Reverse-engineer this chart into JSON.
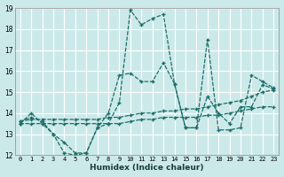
{
  "xlabel": "Humidex (Indice chaleur)",
  "ylabel": "",
  "bg_color": "#cce9e9",
  "grid_color": "#ffffff",
  "line_color": "#1a6e6a",
  "xlim": [
    -0.5,
    23.5
  ],
  "ylim": [
    12,
    19
  ],
  "xticks": [
    0,
    1,
    2,
    3,
    4,
    5,
    6,
    7,
    8,
    9,
    10,
    11,
    12,
    13,
    14,
    15,
    16,
    17,
    18,
    19,
    20,
    21,
    22,
    23
  ],
  "yticks": [
    12,
    13,
    14,
    15,
    16,
    17,
    18,
    19
  ],
  "series": [
    {
      "x": [
        0,
        1,
        2,
        3,
        4,
        5,
        6,
        7,
        8,
        9,
        10,
        11,
        12,
        13,
        14,
        15,
        16,
        17,
        18,
        19,
        20,
        21,
        22,
        23
      ],
      "y": [
        13.5,
        13.5,
        13.5,
        13.5,
        13.5,
        13.5,
        13.5,
        13.5,
        13.5,
        13.5,
        13.6,
        13.7,
        13.7,
        13.8,
        13.8,
        13.8,
        13.8,
        13.9,
        13.9,
        14.0,
        14.1,
        14.2,
        14.3,
        14.3
      ]
    },
    {
      "x": [
        0,
        1,
        2,
        3,
        4,
        5,
        6,
        7,
        8,
        9,
        10,
        11,
        12,
        13,
        14,
        15,
        16,
        17,
        18,
        19,
        20,
        21,
        22,
        23
      ],
      "y": [
        13.6,
        13.7,
        13.7,
        13.7,
        13.7,
        13.7,
        13.7,
        13.7,
        13.8,
        13.8,
        13.9,
        14.0,
        14.0,
        14.1,
        14.1,
        14.2,
        14.2,
        14.3,
        14.4,
        14.5,
        14.6,
        14.8,
        15.0,
        15.1
      ]
    },
    {
      "x": [
        0,
        1,
        2,
        3,
        4,
        5,
        6,
        7,
        8,
        9,
        10,
        11,
        12,
        13,
        14,
        15,
        16,
        17,
        18,
        19,
        20,
        21,
        22,
        23
      ],
      "y": [
        13.5,
        14.0,
        13.5,
        13.0,
        12.6,
        12.1,
        12.1,
        13.3,
        14.0,
        15.8,
        15.9,
        15.5,
        15.5,
        16.4,
        15.4,
        13.3,
        13.3,
        14.8,
        14.0,
        13.5,
        14.3,
        14.3,
        15.35,
        15.15
      ]
    },
    {
      "x": [
        0,
        1,
        2,
        3,
        4,
        5,
        6,
        7,
        8,
        9,
        10,
        11,
        12,
        13,
        14,
        15,
        16,
        17,
        18,
        19,
        20,
        21,
        22,
        23
      ],
      "y": [
        13.6,
        13.8,
        13.6,
        13.0,
        12.1,
        12.0,
        12.1,
        13.3,
        13.5,
        14.5,
        18.9,
        18.2,
        18.5,
        18.7,
        15.4,
        13.3,
        13.3,
        17.5,
        13.2,
        13.2,
        13.3,
        15.8,
        15.5,
        15.2
      ]
    }
  ]
}
